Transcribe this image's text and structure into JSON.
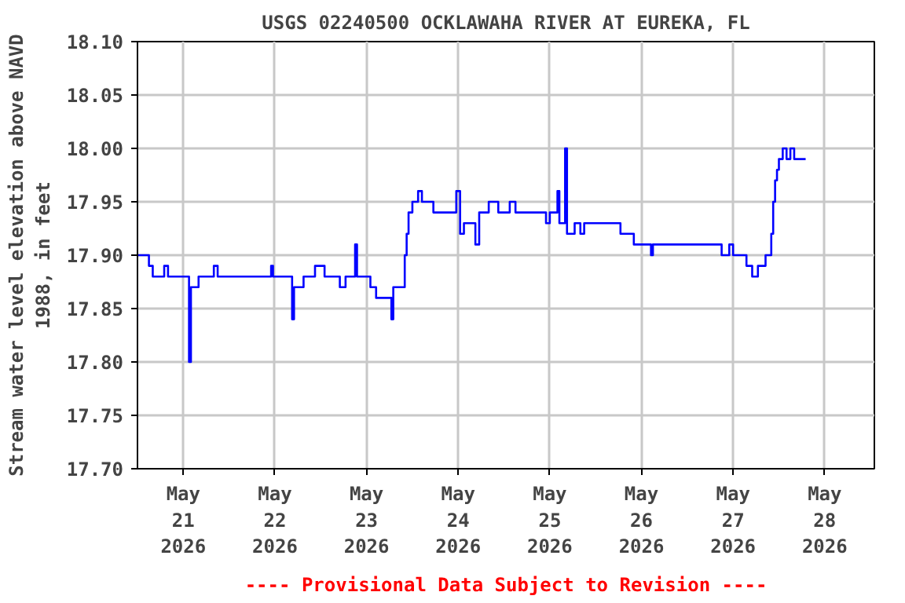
{
  "chart_data": {
    "type": "step",
    "title": "USGS 02240500 OCKLAWAHA RIVER AT EUREKA, FL",
    "ylabel": "Stream water level elevation above NAVD 1988, in feet",
    "annotations": [
      "---- Provisional Data Subject to Revision ----"
    ],
    "x": [
      "2026-05-20T12:00",
      "2026-05-20T15:00",
      "2026-05-20T16:00",
      "2026-05-20T19:00",
      "2026-05-20T20:00",
      "2026-05-21T01:30",
      "2026-05-21T02:00",
      "2026-05-21T04:00",
      "2026-05-21T08:00",
      "2026-05-21T09:00",
      "2026-05-21T23:00",
      "2026-05-21T23:30",
      "2026-05-22T04:30",
      "2026-05-22T05:00",
      "2026-05-22T07:30",
      "2026-05-22T10:30",
      "2026-05-22T13:00",
      "2026-05-22T17:00",
      "2026-05-22T18:30",
      "2026-05-22T21:00",
      "2026-05-22T21:30",
      "2026-05-23T01:00",
      "2026-05-23T02:30",
      "2026-05-23T06:30",
      "2026-05-23T07:00",
      "2026-05-23T10:00",
      "2026-05-23T10:30",
      "2026-05-23T11:00",
      "2026-05-23T12:00",
      "2026-05-23T13:30",
      "2026-05-23T14:30",
      "2026-05-23T17:30",
      "2026-05-23T23:30",
      "2026-05-24T00:30",
      "2026-05-24T01:30",
      "2026-05-24T04:30",
      "2026-05-24T05:30",
      "2026-05-24T08:00",
      "2026-05-24T10:30",
      "2026-05-24T13:30",
      "2026-05-24T15:00",
      "2026-05-24T23:00",
      "2026-05-25T00:00",
      "2026-05-25T02:00",
      "2026-05-25T02:30",
      "2026-05-25T04:00",
      "2026-05-25T04:30",
      "2026-05-25T06:30",
      "2026-05-25T08:00",
      "2026-05-25T09:00",
      "2026-05-25T18:00",
      "2026-05-25T18:30",
      "2026-05-25T22:00",
      "2026-05-26T02:30",
      "2026-05-26T03:00",
      "2026-05-26T21:00",
      "2026-05-26T23:00",
      "2026-05-27T00:00",
      "2026-05-27T03:30",
      "2026-05-27T05:00",
      "2026-05-27T06:30",
      "2026-05-27T08:30",
      "2026-05-27T10:00",
      "2026-05-27T10:30",
      "2026-05-27T11:00",
      "2026-05-27T11:30",
      "2026-05-27T12:00",
      "2026-05-27T13:00",
      "2026-05-27T14:00",
      "2026-05-27T15:00",
      "2026-05-27T16:00",
      "2026-05-27T19:00"
    ],
    "series": [
      {
        "color": "#0000ff",
        "values": [
          17.9,
          17.89,
          17.88,
          17.89,
          17.88,
          17.8,
          17.87,
          17.88,
          17.89,
          17.88,
          17.89,
          17.88,
          17.84,
          17.87,
          17.88,
          17.89,
          17.88,
          17.87,
          17.88,
          17.91,
          17.88,
          17.87,
          17.86,
          17.84,
          17.87,
          17.9,
          17.92,
          17.94,
          17.95,
          17.96,
          17.95,
          17.94,
          17.96,
          17.92,
          17.93,
          17.91,
          17.94,
          17.95,
          17.94,
          17.95,
          17.94,
          17.93,
          17.94,
          17.96,
          17.93,
          18.0,
          17.92,
          17.93,
          17.92,
          17.93,
          17.93,
          17.92,
          17.91,
          17.9,
          17.91,
          17.9,
          17.91,
          17.9,
          17.89,
          17.88,
          17.89,
          17.9,
          17.92,
          17.95,
          17.97,
          17.98,
          17.99,
          18.0,
          17.99,
          18.0,
          17.99,
          17.99
        ]
      }
    ],
    "xlim": [
      "2026-05-20T12:00",
      "2026-05-28T13:00"
    ],
    "xticks": [
      {
        "value": "2026-05-21",
        "label": "May\n21\n2026"
      },
      {
        "value": "2026-05-22",
        "label": "May\n22\n2026"
      },
      {
        "value": "2026-05-23",
        "label": "May\n23\n2026"
      },
      {
        "value": "2026-05-24",
        "label": "May\n24\n2026"
      },
      {
        "value": "2026-05-25",
        "label": "May\n25\n2026"
      },
      {
        "value": "2026-05-26",
        "label": "May\n26\n2026"
      },
      {
        "value": "2026-05-27",
        "label": "May\n27\n2026"
      },
      {
        "value": "2026-05-28",
        "label": "May\n28\n2026"
      }
    ],
    "ylim": [
      17.7,
      18.1
    ],
    "yticks": [
      {
        "value": 17.7,
        "label": "17.70"
      },
      {
        "value": 17.75,
        "label": "17.75"
      },
      {
        "value": 17.8,
        "label": "17.80"
      },
      {
        "value": 17.85,
        "label": "17.85"
      },
      {
        "value": 17.9,
        "label": "17.90"
      },
      {
        "value": 17.95,
        "label": "17.95"
      },
      {
        "value": 18.0,
        "label": "18.00"
      },
      {
        "value": 18.05,
        "label": "18.05"
      },
      {
        "value": 18.1,
        "label": "18.10"
      }
    ],
    "grid": true,
    "line_style": "solid",
    "marker": "none"
  }
}
